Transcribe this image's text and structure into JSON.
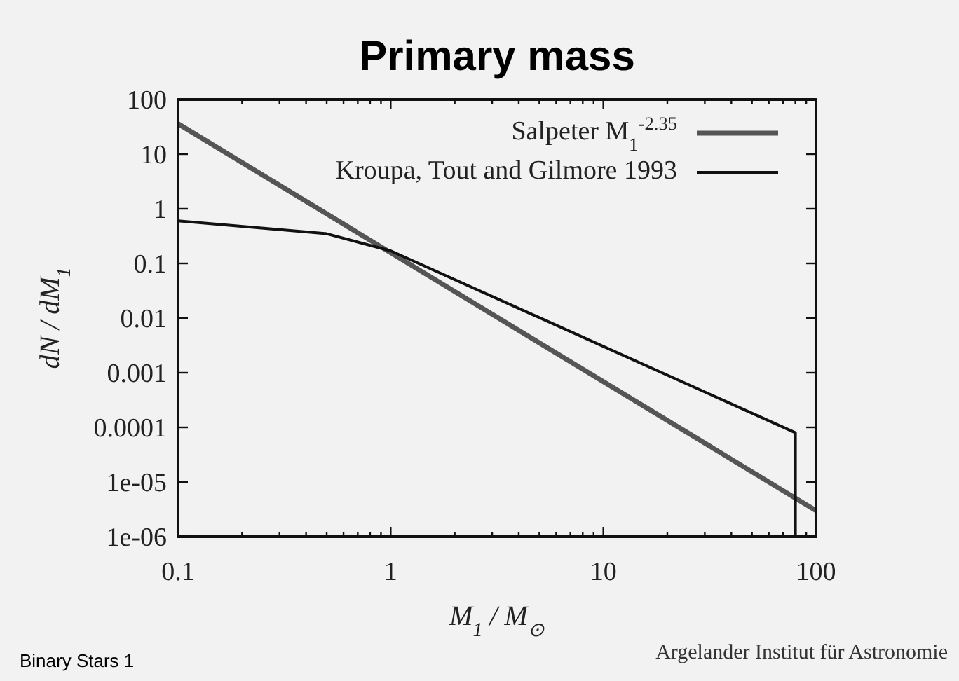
{
  "chart_data": {
    "type": "line",
    "title": "Primary mass",
    "xlabel": "M$_{1}$ / M$_{⊙}$",
    "ylabel": "dN / dM$_{1}$",
    "log": "xy",
    "grid": false,
    "legend": "top right",
    "marker": "none",
    "line_style": "solid",
    "xlim": [
      0.1,
      100
    ],
    "xticks": [
      0.1,
      1,
      10,
      100
    ],
    "ylim": [
      1e-06,
      100
    ],
    "yticks": [
      100,
      10,
      1,
      0.1,
      0.01,
      0.001,
      0.0001,
      {
        "value": 1e-05,
        "label": "1e-05"
      },
      {
        "value": 1e-06,
        "label": "1e-06"
      }
    ],
    "series": [
      {
        "name": "Salpeter M$_{1}$$^{-2.35}$",
        "color": "#555555",
        "x": [
          0.1,
          100
        ],
        "values": [
          36,
          3e-06
        ]
      },
      {
        "name": "Kroupa, Tout and Gilmore 1993",
        "color": "#111111",
        "x": [
          0.1,
          0.5,
          1,
          80,
          80
        ],
        "values": [
          0.6,
          0.35,
          0.17,
          8e-05,
          1e-06
        ]
      }
    ],
    "annotations": [
      "Binary Stars 1",
      "Argelander Institut für Astronomie"
    ]
  }
}
